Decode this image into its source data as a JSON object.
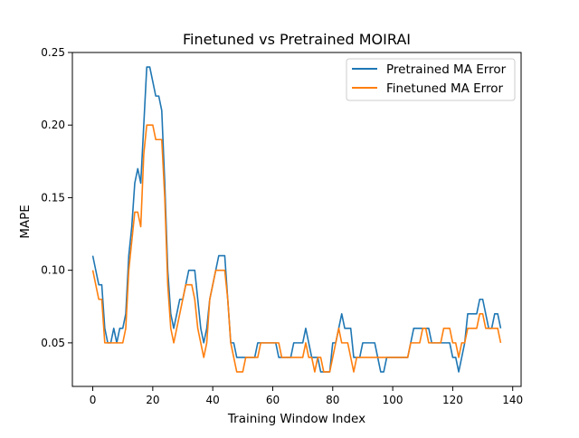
{
  "chart_data": {
    "type": "line",
    "title": "Finetuned vs Pretrained MOIRAI",
    "xlabel": "Training Window Index",
    "ylabel": "MAPE",
    "xlim": [
      -6.8,
      142.8
    ],
    "ylim": [
      0.02,
      0.25
    ],
    "xticks": [
      0,
      20,
      40,
      60,
      80,
      100,
      120,
      140
    ],
    "yticks": [
      0.05,
      0.1,
      0.15,
      0.2,
      0.25
    ],
    "ytick_labels": [
      "0.05",
      "0.10",
      "0.15",
      "0.20",
      "0.25"
    ],
    "grid": false,
    "legend_position": "top-right",
    "colors": {
      "pretrained": "#1f77b4",
      "finetuned": "#ff7f0e"
    },
    "series": [
      {
        "name": "Pretrained MA Error",
        "color": "#1f77b4",
        "values": [
          0.11,
          0.1,
          0.09,
          0.09,
          0.06,
          0.05,
          0.05,
          0.06,
          0.05,
          0.06,
          0.06,
          0.07,
          0.11,
          0.13,
          0.16,
          0.17,
          0.16,
          0.2,
          0.24,
          0.24,
          0.23,
          0.22,
          0.22,
          0.21,
          0.16,
          0.1,
          0.07,
          0.06,
          0.07,
          0.08,
          0.08,
          0.09,
          0.1,
          0.1,
          0.1,
          0.08,
          0.06,
          0.05,
          0.06,
          0.08,
          0.09,
          0.1,
          0.11,
          0.11,
          0.11,
          0.08,
          0.05,
          0.05,
          0.04,
          0.04,
          0.04,
          0.04,
          0.04,
          0.04,
          0.04,
          0.05,
          0.05,
          0.05,
          0.05,
          0.05,
          0.05,
          0.05,
          0.04,
          0.04,
          0.04,
          0.04,
          0.04,
          0.05,
          0.05,
          0.05,
          0.05,
          0.06,
          0.05,
          0.04,
          0.04,
          0.04,
          0.03,
          0.03,
          0.03,
          0.03,
          0.05,
          0.05,
          0.06,
          0.07,
          0.06,
          0.06,
          0.06,
          0.04,
          0.04,
          0.04,
          0.05,
          0.05,
          0.05,
          0.05,
          0.05,
          0.04,
          0.03,
          0.03,
          0.04,
          0.04,
          0.04,
          0.04,
          0.04,
          0.04,
          0.04,
          0.04,
          0.05,
          0.06,
          0.06,
          0.06,
          0.06,
          0.06,
          0.06,
          0.05,
          0.05,
          0.05,
          0.05,
          0.05,
          0.05,
          0.05,
          0.04,
          0.04,
          0.03,
          0.04,
          0.05,
          0.07,
          0.07,
          0.07,
          0.07,
          0.08,
          0.08,
          0.07,
          0.06,
          0.06,
          0.07,
          0.07,
          0.06
        ]
      },
      {
        "name": "Finetuned MA Error",
        "color": "#ff7f0e",
        "values": [
          0.1,
          0.09,
          0.08,
          0.08,
          0.05,
          0.05,
          0.05,
          0.05,
          0.05,
          0.05,
          0.05,
          0.06,
          0.1,
          0.12,
          0.14,
          0.14,
          0.13,
          0.18,
          0.2,
          0.2,
          0.2,
          0.19,
          0.19,
          0.19,
          0.15,
          0.09,
          0.06,
          0.05,
          0.06,
          0.07,
          0.08,
          0.09,
          0.09,
          0.09,
          0.08,
          0.06,
          0.05,
          0.04,
          0.05,
          0.08,
          0.09,
          0.1,
          0.1,
          0.1,
          0.1,
          0.08,
          0.05,
          0.04,
          0.03,
          0.03,
          0.03,
          0.04,
          0.04,
          0.04,
          0.04,
          0.04,
          0.05,
          0.05,
          0.05,
          0.05,
          0.05,
          0.05,
          0.05,
          0.04,
          0.04,
          0.04,
          0.04,
          0.04,
          0.04,
          0.04,
          0.04,
          0.05,
          0.04,
          0.04,
          0.03,
          0.04,
          0.04,
          0.03,
          0.03,
          0.03,
          0.04,
          0.05,
          0.06,
          0.05,
          0.05,
          0.05,
          0.04,
          0.03,
          0.04,
          0.04,
          0.04,
          0.04,
          0.04,
          0.04,
          0.04,
          0.04,
          0.04,
          0.04,
          0.04,
          0.04,
          0.04,
          0.04,
          0.04,
          0.04,
          0.04,
          0.04,
          0.05,
          0.05,
          0.05,
          0.05,
          0.06,
          0.06,
          0.05,
          0.05,
          0.05,
          0.05,
          0.05,
          0.06,
          0.06,
          0.06,
          0.05,
          0.05,
          0.04,
          0.05,
          0.05,
          0.06,
          0.06,
          0.06,
          0.06,
          0.07,
          0.07,
          0.06,
          0.06,
          0.06,
          0.06,
          0.06,
          0.05
        ]
      }
    ]
  }
}
